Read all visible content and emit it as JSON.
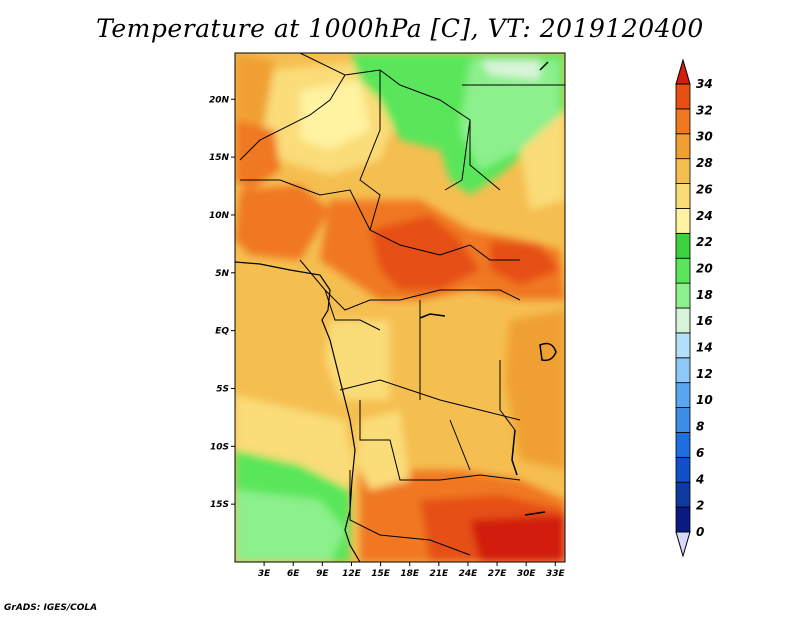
{
  "title": "Temperature at 1000hPa [C], VT: 2019120400",
  "credit": "GrADS: IGES/COLA",
  "map": {
    "lon_range": [
      0,
      34
    ],
    "lat_range": [
      -20,
      24
    ],
    "lon_ticks": [
      "3E",
      "6E",
      "9E",
      "12E",
      "15E",
      "18E",
      "21E",
      "24E",
      "27E",
      "30E",
      "33E"
    ],
    "lat_ticks": [
      "20N",
      "15N",
      "10N",
      "5N",
      "EQ",
      "5S",
      "10S",
      "15S"
    ]
  },
  "colorbar": {
    "levels": [
      "0",
      "2",
      "4",
      "6",
      "8",
      "10",
      "12",
      "14",
      "16",
      "18",
      "20",
      "22",
      "24",
      "26",
      "28",
      "30",
      "32",
      "34"
    ],
    "colors": [
      "#0a1a80",
      "#0c3aa0",
      "#1050c8",
      "#1e6ee0",
      "#3c8ce8",
      "#5aa6f0",
      "#8cc8f8",
      "#b4e0fa",
      "#d8f4d8",
      "#8cf08c",
      "#5ae65a",
      "#3cd23c",
      "#fff2a0",
      "#fadc78",
      "#f5be50",
      "#f0a032",
      "#f07820",
      "#e65014",
      "#d21e0a"
    ],
    "under_color": "#d8d8f8",
    "over_color": "#d21e0a"
  },
  "colors": {
    "sea_green": "#3cd23c",
    "boundary": "#000000"
  }
}
